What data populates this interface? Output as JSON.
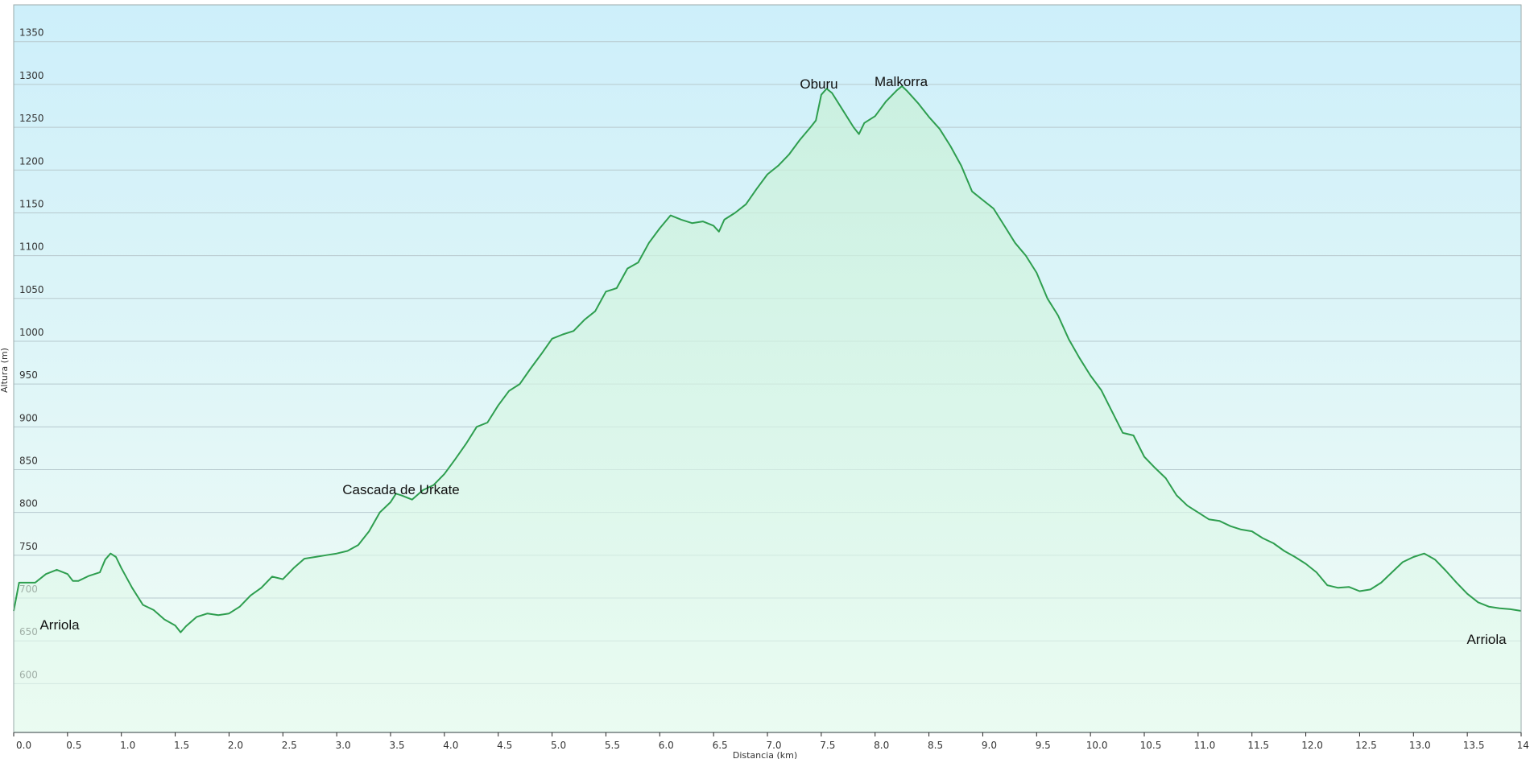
{
  "chart_data": {
    "type": "area",
    "x_label": "Distancia (km)",
    "y_label": "Altura (m)",
    "color": "#2e9e4f",
    "grid": true,
    "xlim": [
      0,
      14
    ],
    "ylim": [
      543,
      1393
    ],
    "xticks": [
      {
        "value": 0,
        "label": "0.0"
      },
      0.5,
      {
        "value": 1,
        "label": "1.0"
      },
      1.5,
      {
        "value": 2,
        "label": "2.0"
      },
      2.5,
      {
        "value": 3,
        "label": "3.0"
      },
      3.5,
      {
        "value": 4,
        "label": "4.0"
      },
      4.5,
      {
        "value": 5,
        "label": "5.0"
      },
      5.5,
      {
        "value": 6,
        "label": "6.0"
      },
      6.5,
      {
        "value": 7,
        "label": "7.0"
      },
      7.5,
      {
        "value": 8,
        "label": "8.0"
      },
      8.5,
      {
        "value": 9,
        "label": "9.0"
      },
      9.5,
      {
        "value": 10,
        "label": "10.0"
      },
      10.5,
      {
        "value": 11,
        "label": "11.0"
      },
      11.5,
      {
        "value": 12,
        "label": "12.0"
      },
      12.5,
      {
        "value": 13,
        "label": "13.0"
      },
      13.5,
      {
        "value": 14,
        "label": "14.0"
      }
    ],
    "yticks": [
      600,
      650,
      700,
      750,
      800,
      850,
      900,
      950,
      1000,
      1050,
      1100,
      1150,
      1200,
      1250,
      1300,
      1350
    ],
    "annotations": [
      "Arriola",
      "Cascada de Urkate",
      "Oburu",
      "Malkorra",
      "Arriola"
    ],
    "x": [
      0,
      0.05,
      0.2,
      0.3,
      0.4,
      0.5,
      0.55,
      0.6,
      0.7,
      0.8,
      0.85,
      0.9,
      0.95,
      1.0,
      1.1,
      1.2,
      1.3,
      1.4,
      1.5,
      1.55,
      1.6,
      1.7,
      1.8,
      1.9,
      2.0,
      2.1,
      2.2,
      2.3,
      2.4,
      2.5,
      2.6,
      2.7,
      2.8,
      2.9,
      3.0,
      3.1,
      3.2,
      3.3,
      3.4,
      3.5,
      3.55,
      3.6,
      3.7,
      3.8,
      3.9,
      4.0,
      4.1,
      4.2,
      4.3,
      4.4,
      4.5,
      4.6,
      4.7,
      4.8,
      4.9,
      5.0,
      5.1,
      5.2,
      5.3,
      5.4,
      5.5,
      5.6,
      5.7,
      5.8,
      5.9,
      6.0,
      6.1,
      6.2,
      6.3,
      6.4,
      6.5,
      6.55,
      6.6,
      6.7,
      6.8,
      6.9,
      7.0,
      7.1,
      7.2,
      7.3,
      7.4,
      7.45,
      7.5,
      7.55,
      7.6,
      7.7,
      7.8,
      7.85,
      7.9,
      8.0,
      8.1,
      8.2,
      8.25,
      8.3,
      8.4,
      8.5,
      8.6,
      8.7,
      8.8,
      8.9,
      9.0,
      9.1,
      9.2,
      9.3,
      9.4,
      9.5,
      9.6,
      9.7,
      9.8,
      9.9,
      10.0,
      10.1,
      10.2,
      10.3,
      10.4,
      10.5,
      10.6,
      10.7,
      10.8,
      10.9,
      11.0,
      11.1,
      11.2,
      11.3,
      11.4,
      11.5,
      11.6,
      11.7,
      11.8,
      11.9,
      12.0,
      12.1,
      12.2,
      12.3,
      12.4,
      12.5,
      12.6,
      12.7,
      12.8,
      12.9,
      13.0,
      13.1,
      13.2,
      13.3,
      13.4,
      13.5,
      13.6,
      13.7,
      13.8,
      13.9,
      14.0
    ],
    "values": [
      685,
      718,
      718,
      728,
      733,
      728,
      720,
      720,
      726,
      730,
      745,
      752,
      748,
      735,
      712,
      692,
      686,
      675,
      668,
      660,
      667,
      678,
      682,
      680,
      682,
      690,
      703,
      712,
      725,
      722,
      735,
      746,
      748,
      750,
      752,
      755,
      762,
      778,
      800,
      812,
      822,
      820,
      815,
      826,
      832,
      845,
      862,
      880,
      900,
      905,
      925,
      942,
      950,
      968,
      985,
      1003,
      1008,
      1012,
      1025,
      1035,
      1058,
      1062,
      1085,
      1092,
      1115,
      1132,
      1147,
      1142,
      1138,
      1140,
      1135,
      1128,
      1142,
      1150,
      1160,
      1178,
      1195,
      1205,
      1218,
      1235,
      1250,
      1258,
      1288,
      1295,
      1290,
      1270,
      1250,
      1242,
      1255,
      1263,
      1280,
      1293,
      1298,
      1292,
      1278,
      1262,
      1248,
      1228,
      1205,
      1175,
      1165,
      1155,
      1135,
      1115,
      1100,
      1080,
      1050,
      1030,
      1002,
      980,
      960,
      943,
      918,
      893,
      890,
      865,
      852,
      840,
      820,
      808,
      800,
      792,
      790,
      784,
      780,
      778,
      770,
      764,
      755,
      748,
      740,
      730,
      715,
      712,
      713,
      708,
      710,
      718,
      730,
      742,
      748,
      752,
      745,
      732,
      718,
      705,
      695,
      690,
      688,
      687,
      685
    ]
  }
}
